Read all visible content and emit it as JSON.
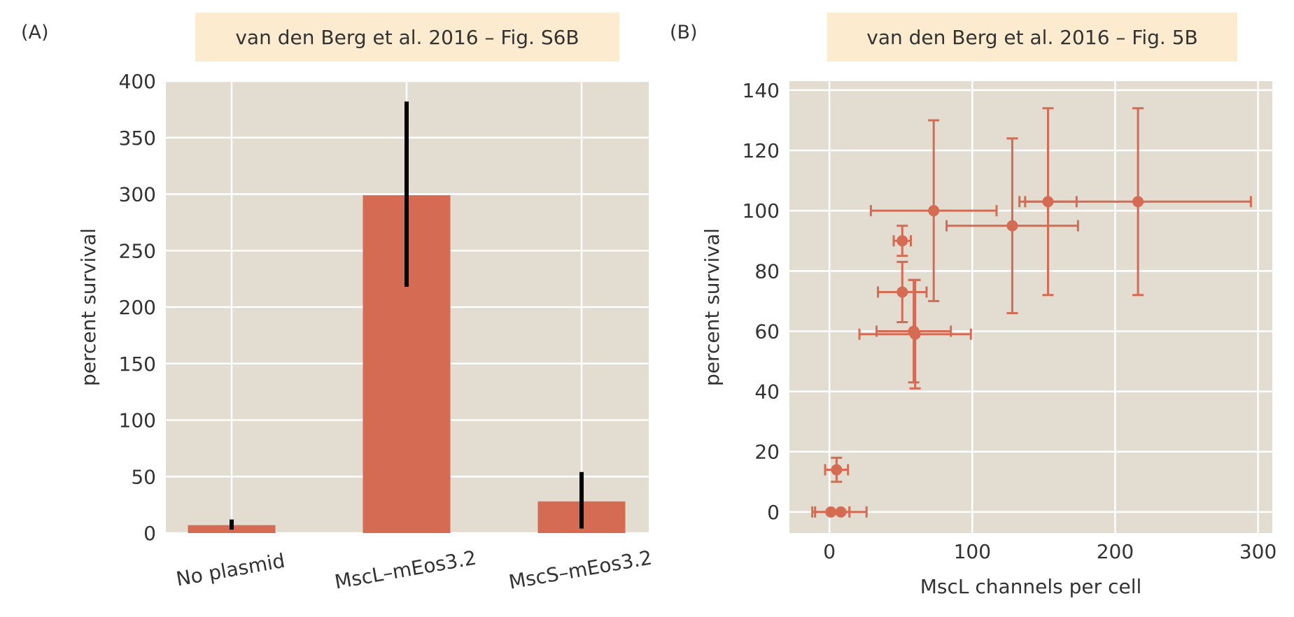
{
  "colors": {
    "accent": "#D56B53",
    "plot_bg": "#E3DCD0",
    "grid": "#FFFFFF",
    "title_bg": "#FCEBCF",
    "errorbar_a": "#000000",
    "text": "#333333"
  },
  "panel_a": {
    "label": "(A)"
  },
  "panel_b": {
    "label": "(B)"
  },
  "chart_data": [
    {
      "type": "bar",
      "title": "van den Berg et al. 2016 – Fig. S6B",
      "xlabel": "",
      "ylabel": "percent survival",
      "categories": [
        "No plasmid",
        "MscL–mEos3.2",
        "MscS–mEos3.2"
      ],
      "values": [
        7,
        299,
        28
      ],
      "error_low": [
        3,
        218,
        4
      ],
      "error_high": [
        12,
        382,
        54
      ],
      "ylim": [
        0,
        400
      ],
      "yticks": [
        0,
        50,
        100,
        150,
        200,
        250,
        300,
        350,
        400
      ],
      "grid": true
    },
    {
      "type": "scatter",
      "title": "van den Berg et al. 2016 – Fig. 5B",
      "xlabel": "MscL channels per cell",
      "ylabel": "percent survival",
      "xlim": [
        -28,
        310
      ],
      "ylim": [
        -7,
        143
      ],
      "xticks": [
        0,
        100,
        200,
        300
      ],
      "yticks": [
        0,
        20,
        40,
        60,
        80,
        100,
        120,
        140
      ],
      "grid": true,
      "points": [
        {
          "x": 1,
          "y": 0,
          "xerr": 13,
          "yerr": 0
        },
        {
          "x": 8,
          "y": 0,
          "xerr": 18,
          "yerr": 0
        },
        {
          "x": 5,
          "y": 14,
          "xerr": 8,
          "yerr": 4
        },
        {
          "x": 51,
          "y": 90,
          "xerr": 6,
          "yerr": 5
        },
        {
          "x": 51,
          "y": 73,
          "xerr": 17,
          "yerr": 10
        },
        {
          "x": 59,
          "y": 60,
          "xerr": 26,
          "yerr": 17
        },
        {
          "x": 60,
          "y": 59,
          "xerr": 39,
          "yerr": 18
        },
        {
          "x": 73,
          "y": 100,
          "xerr": 44,
          "yerr": 30
        },
        {
          "x": 128,
          "y": 95,
          "xerr": 46,
          "yerr": 29
        },
        {
          "x": 153,
          "y": 103,
          "xerr": 20,
          "yerr": 31
        },
        {
          "x": 216,
          "y": 103,
          "xerr": 79,
          "yerr": 31
        }
      ]
    }
  ]
}
